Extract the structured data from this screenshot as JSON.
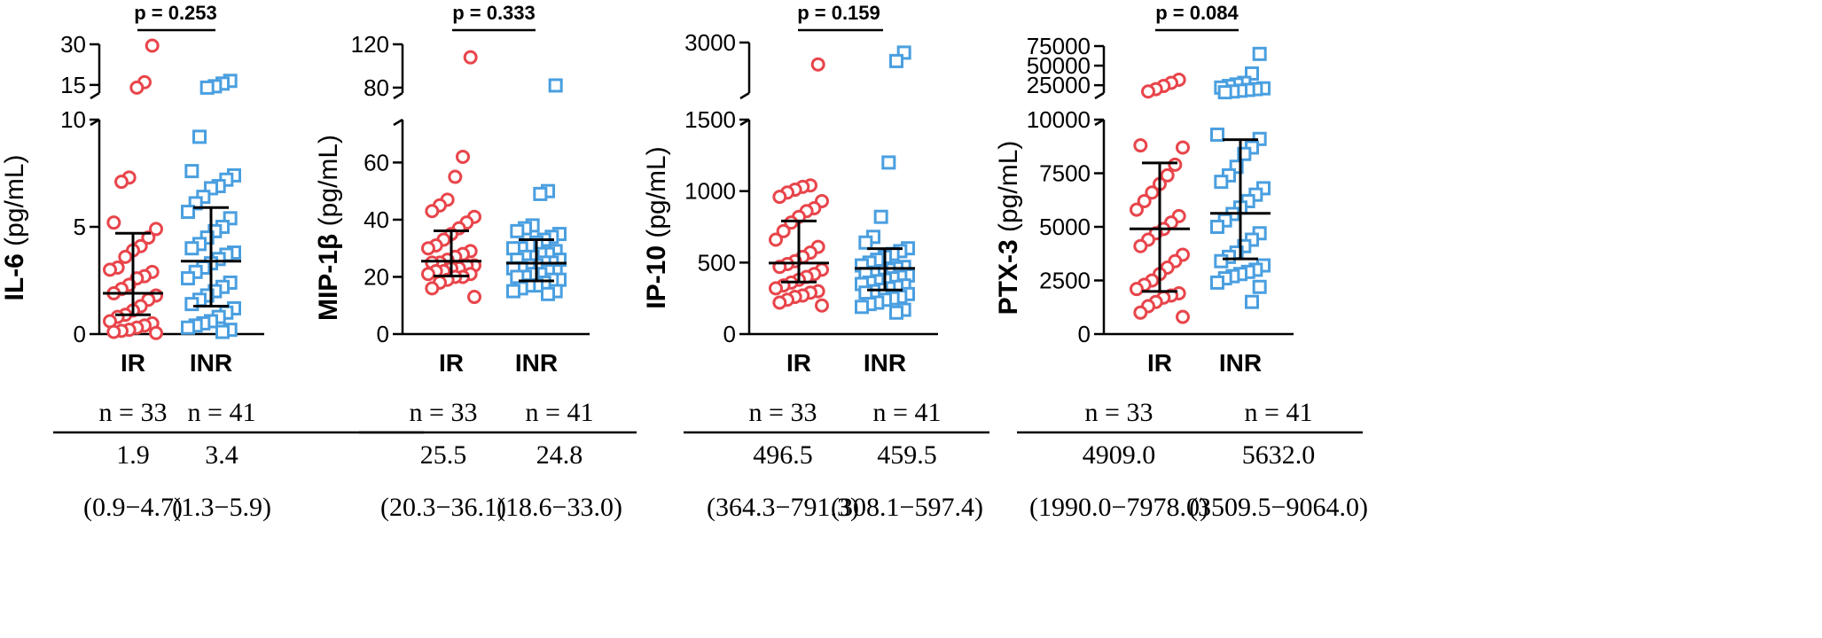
{
  "colors": {
    "ir": "#e8454b",
    "inr": "#4a9fe0",
    "axis": "#000000"
  },
  "chart_data": [
    {
      "type": "scatter",
      "panel": "IL-6",
      "ylabel_main": "IL-6",
      "ylabel_unit": " (pg/mL)",
      "categories": [
        "IR",
        "INR"
      ],
      "p_label": "p = 0.253",
      "lower_axis": {
        "range": [
          0,
          10
        ],
        "ticks": [
          0,
          5,
          10
        ],
        "tick_labels": [
          "0",
          "5",
          "10"
        ]
      },
      "upper_axis": {
        "range": [
          12,
          30
        ],
        "ticks": [
          15,
          30
        ],
        "tick_labels": [
          "15",
          "30"
        ]
      },
      "series": [
        {
          "name": "IR",
          "marker": "circle",
          "median": 1.9,
          "q1": 0.9,
          "q3": 4.7,
          "values": [
            29.5,
            16,
            14,
            7.3,
            7.1,
            5.2,
            4.9,
            4.5,
            4.1,
            3.9,
            3.6,
            3.1,
            3.0,
            2.9,
            2.7,
            2.6,
            2.3,
            2.1,
            1.9,
            1.8,
            1.6,
            1.3,
            1.1,
            0.9,
            0.8,
            0.6,
            0.5,
            0.4,
            0.3,
            0.2,
            0.15,
            0.1,
            0.05
          ]
        },
        {
          "name": "INR",
          "marker": "square",
          "median": 3.4,
          "q1": 1.3,
          "q3": 5.9,
          "values": [
            16.5,
            15.5,
            14.5,
            14,
            9.2,
            7.6,
            7.4,
            7.2,
            6.9,
            6.8,
            6.4,
            6.1,
            5.7,
            5.4,
            5.0,
            4.8,
            4.5,
            4.2,
            4.0,
            3.8,
            3.7,
            3.5,
            3.3,
            3.1,
            2.9,
            2.6,
            2.4,
            2.2,
            2.0,
            1.8,
            1.6,
            1.4,
            1.2,
            1.0,
            0.8,
            0.6,
            0.5,
            0.4,
            0.3,
            0.2,
            0.1
          ]
        }
      ],
      "table": {
        "n_ir": "n = 33",
        "n_inr": "n = 41",
        "med_ir": "1.9",
        "med_inr": "3.4",
        "iqr_ir": "(0.9−4.7)",
        "iqr_inr": "(1.3−5.9)"
      }
    },
    {
      "type": "scatter",
      "panel": "MIP-1β",
      "ylabel_main": "MIP-1",
      "ylabel_greek": "β",
      "ylabel_unit": " (pg/mL)",
      "categories": [
        "IR",
        "INR"
      ],
      "p_label": "p = 0.333",
      "lower_axis": {
        "range": [
          0,
          75
        ],
        "ticks": [
          0,
          20,
          40,
          60
        ],
        "tick_labels": [
          "0",
          "20",
          "40",
          "60"
        ]
      },
      "upper_axis": {
        "range": [
          75,
          120
        ],
        "ticks": [
          80,
          120
        ],
        "tick_labels": [
          "80",
          "120"
        ]
      },
      "series": [
        {
          "name": "IR",
          "marker": "circle",
          "median": 25.5,
          "q1": 20.3,
          "q3": 36.1,
          "values": [
            108,
            62,
            55,
            47,
            45,
            43,
            41,
            39,
            37,
            35,
            33,
            31,
            30,
            29,
            28,
            27,
            26,
            25,
            25,
            24,
            24,
            23,
            23,
            22,
            22,
            21,
            21,
            20,
            20,
            19,
            18,
            16,
            13
          ]
        },
        {
          "name": "INR",
          "marker": "square",
          "median": 24.8,
          "q1": 18.6,
          "q3": 33.0,
          "values": [
            82,
            50,
            49,
            38,
            37,
            36,
            35,
            34,
            33,
            32,
            31,
            30,
            30,
            29,
            28,
            28,
            27,
            27,
            26,
            26,
            25,
            25,
            24,
            24,
            23,
            23,
            22,
            22,
            21,
            21,
            20,
            20,
            19,
            19,
            18,
            17,
            17,
            16,
            15,
            15,
            14
          ]
        }
      ],
      "table": {
        "n_ir": "n = 33",
        "n_inr": "n = 41",
        "med_ir": "25.5",
        "med_inr": "24.8",
        "iqr_ir": "(20.3−36.1)",
        "iqr_inr": "(18.6−33.0)"
      }
    },
    {
      "type": "scatter",
      "panel": "IP-10",
      "ylabel_main": "IP-10",
      "ylabel_unit": " (pg/mL)",
      "categories": [
        "IR",
        "INR"
      ],
      "p_label": "p = 0.159",
      "lower_axis": {
        "range": [
          0,
          1500
        ],
        "ticks": [
          0,
          500,
          1000,
          1500
        ],
        "tick_labels": [
          "0",
          "500",
          "1000",
          "1500"
        ]
      },
      "upper_axis": {
        "range": [
          1500,
          3000
        ],
        "ticks": [
          3000
        ],
        "tick_labels": [
          "3000"
        ]
      },
      "series": [
        {
          "name": "IR",
          "marker": "circle",
          "median": 496.5,
          "q1": 364.3,
          "q3": 791.3,
          "values": [
            2350,
            1040,
            1030,
            1010,
            990,
            960,
            930,
            880,
            860,
            820,
            780,
            720,
            660,
            610,
            570,
            540,
            510,
            490,
            470,
            450,
            420,
            400,
            380,
            360,
            340,
            320,
            300,
            290,
            270,
            260,
            240,
            220,
            200
          ]
        },
        {
          "name": "INR",
          "marker": "square",
          "median": 459.5,
          "q1": 308.1,
          "q3": 597.4,
          "values": [
            2700,
            2450,
            1200,
            820,
            680,
            640,
            600,
            580,
            560,
            540,
            520,
            500,
            480,
            470,
            460,
            450,
            440,
            430,
            420,
            410,
            400,
            390,
            380,
            370,
            360,
            350,
            340,
            330,
            320,
            310,
            300,
            290,
            280,
            260,
            250,
            240,
            220,
            210,
            190,
            170,
            150
          ]
        }
      ],
      "table": {
        "n_ir": "n = 33",
        "n_inr": "n = 41",
        "med_ir": "496.5",
        "med_inr": "459.5",
        "iqr_ir": "(364.3−791.3)",
        "iqr_inr": "(308.1−597.4)"
      }
    },
    {
      "type": "scatter",
      "panel": "PTX-3",
      "ylabel_main": "PTX-3",
      "ylabel_unit": " (pg/mL)",
      "categories": [
        "IR",
        "INR"
      ],
      "p_label": "p = 0.084",
      "lower_axis": {
        "range": [
          0,
          10000
        ],
        "ticks": [
          0,
          2500,
          5000,
          7500,
          10000
        ],
        "tick_labels": [
          "0",
          "2500",
          "5000",
          "7500",
          "10000"
        ]
      },
      "upper_axis": {
        "range": [
          15000,
          75000
        ],
        "ticks": [
          25000,
          50000,
          75000
        ],
        "tick_labels": [
          "25000",
          "50000",
          "75000"
        ]
      },
      "series": [
        {
          "name": "IR",
          "marker": "circle",
          "median": 4909.0,
          "q1": 1990.0,
          "q3": 7978.0,
          "values": [
            32000,
            28000,
            24000,
            20000,
            17000,
            8800,
            8700,
            7900,
            7400,
            7000,
            6600,
            6200,
            5800,
            5500,
            5200,
            4900,
            4700,
            4400,
            4100,
            3700,
            3400,
            3100,
            2800,
            2500,
            2300,
            2100,
            1900,
            1800,
            1700,
            1500,
            1300,
            1000,
            800
          ]
        },
        {
          "name": "INR",
          "marker": "square",
          "median": 5632.0,
          "q1": 3509.5,
          "q3": 9064.0,
          "values": [
            65000,
            40000,
            28000,
            26000,
            24000,
            22000,
            21000,
            20000,
            19000,
            18000,
            17000,
            16000,
            9300,
            9100,
            8700,
            8400,
            7800,
            7400,
            7100,
            6800,
            6500,
            6200,
            5900,
            5600,
            5300,
            5000,
            4700,
            4400,
            4100,
            3800,
            3600,
            3400,
            3200,
            3000,
            2900,
            2800,
            2700,
            2600,
            2400,
            2200,
            1500
          ]
        }
      ],
      "table": {
        "n_ir": "n = 33",
        "n_inr": "n = 41",
        "med_ir": "4909.0",
        "med_inr": "5632.0",
        "iqr_ir": "(1990.0−7978.0)",
        "iqr_inr": "(3509.5−9064.0)"
      }
    }
  ]
}
